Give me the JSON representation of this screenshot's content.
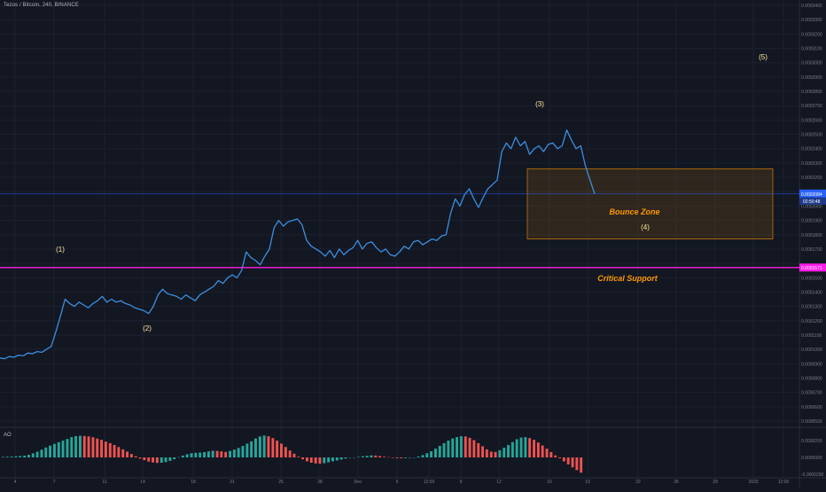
{
  "header": {
    "title": "Tezos / Bitcoin, 240, BINANCE"
  },
  "indicator": {
    "label": "AO"
  },
  "colors": {
    "background": "#131722",
    "price_line": "#3a8fe0",
    "support_line": "#ff1ce8",
    "zone_fill": "rgba(255,152,0,0.12)",
    "zone_border": "#ff9800",
    "annotation_text": "#ff9800",
    "wave_label": "#ffeb9c",
    "axis_text": "#7a7f8c",
    "ao_green": "#26a69a",
    "ao_red": "#ef5350"
  },
  "chart_data": [
    {
      "type": "line",
      "pair": "XTZ/BTC",
      "timeframe": "240",
      "exchange": "BINANCE",
      "ylim": [
        0.0004,
        0.00034
      ],
      "y_ticks": [
        0.00034,
        0.000335,
        0.00033,
        0.000325,
        0.00032,
        0.000315,
        0.00031,
        0.000305,
        0.0003,
        0.000295,
        0.00029,
        0.000285,
        0.00028,
        0.000275,
        0.00027,
        0.000265,
        0.00026,
        0.000255,
        0.00025,
        0.000245,
        0.00024,
        0.000235,
        0.00023,
        0.000225,
        0.00022,
        0.000215,
        0.00021,
        0.000205,
        0.0002,
        0.000195,
        0.00019,
        0.000185,
        0.00018,
        0.000175,
        0.00017,
        0.000165,
        0.00016,
        0.000155,
        0.00015,
        0.000145,
        0.00014,
        0.000135,
        0.00013,
        0.000125,
        0.00012,
        0.000115,
        0.00011,
        0.000105,
        0.0001,
        9.5e-05,
        9e-05,
        8.5e-05,
        8e-05,
        7.5e-05,
        7e-05,
        6.5e-05,
        6e-05,
        5.5e-05,
        5e-05,
        4.5e-05
      ],
      "y_tick_labels": [
        "0.0003400",
        "0.0003300",
        "0.0003200",
        "0.0003100",
        "0.0003000",
        "0.0002900",
        "0.0002800",
        "0.0002700",
        "0.0002600",
        "0.0002500",
        "0.0002400",
        "0.0002300",
        "0.0002200",
        "0.0002100",
        "0.0002000",
        "0.0001900",
        "0.0001800",
        "0.0001700",
        "0.0001600",
        "0.0001500",
        "0.0001400",
        "0.0001300",
        "0.0001200",
        "0.0001100",
        "0.0001000",
        "0.0000900",
        "0.0000800",
        "0.0000700",
        "0.0000600",
        "0.0000500"
      ],
      "x_tick_labels": [
        "4",
        "7",
        "11",
        "14",
        "18",
        "21",
        "25",
        "28",
        "Dec",
        "5",
        "12:00",
        "9",
        "12",
        "16",
        "19",
        "22",
        "26",
        "29",
        "2020",
        "12:00"
      ],
      "current_price_label": "0.0002084",
      "countdown_label": "02:50:48",
      "support_price_label": "0.0001571",
      "support_level": 0.0001571,
      "bounce_zone": {
        "from_date": "Dec 12",
        "to_date": "Dec 29",
        "top": 0.000226,
        "bottom": 0.000177
      },
      "annotations": {
        "bounce_zone": "Bounce Zone",
        "critical_support": "Critical Support"
      },
      "wave_labels": [
        {
          "text": "(1)",
          "x": "Nov 7",
          "y": 0.00017
        },
        {
          "text": "(2)",
          "x": "Nov 14",
          "y": 0.000114
        },
        {
          "text": "(3)",
          "x": "Dec 12",
          "y": 0.000272
        },
        {
          "text": "(4)",
          "x": "Dec 22",
          "y": 0.000183
        },
        {
          "text": "(5)",
          "x": "Dec 30",
          "y": 0.000314
        }
      ],
      "series_values": [
        9.4e-05,
        9.35e-05,
        9.5e-05,
        9.45e-05,
        9.6e-05,
        9.55e-05,
        9.75e-05,
        9.7e-05,
        9.85e-05,
        9.8e-05,
        0.0001,
        0.000102,
        0.000112,
        0.000123,
        0.000135,
        0.000132,
        0.00013,
        0.000133,
        0.000131,
        0.000129,
        0.000132,
        0.000134,
        0.000137,
        0.000133,
        0.000135,
        0.000133,
        0.000134,
        0.000132,
        0.000131,
        0.000129,
        0.000128,
        0.000127,
        0.000125,
        0.00013,
        0.000138,
        0.000142,
        0.000139,
        0.000138,
        0.000137,
        0.000135,
        0.000138,
        0.000136,
        0.000134,
        0.000138,
        0.00014,
        0.000142,
        0.000144,
        0.000148,
        0.000146,
        0.00015,
        0.000152,
        0.00015,
        0.000155,
        0.000168,
        0.000164,
        0.000162,
        0.000159,
        0.000165,
        0.00017,
        0.000185,
        0.00019,
        0.000186,
        0.000189,
        0.00019,
        0.000191,
        0.000187,
        0.000176,
        0.000172,
        0.00017,
        0.000168,
        0.000165,
        0.000169,
        0.000164,
        0.00017,
        0.000166,
        0.000169,
        0.000171,
        0.000176,
        0.00017,
        0.000174,
        0.000175,
        0.000171,
        0.000168,
        0.00017,
        0.000166,
        0.000165,
        0.000168,
        0.000172,
        0.00017,
        0.000175,
        0.000176,
        0.000173,
        0.000175,
        0.000177,
        0.000176,
        0.000179,
        0.00018,
        0.000195,
        0.000205,
        0.0002,
        0.000208,
        0.000212,
        0.000205,
        0.000199,
        0.000206,
        0.000212,
        0.000215,
        0.000218,
        0.000238,
        0.000244,
        0.00024,
        0.000248,
        0.000242,
        0.000245,
        0.000236,
        0.00024,
        0.000242,
        0.000238,
        0.000243,
        0.000244,
        0.00024,
        0.000242,
        0.000253,
        0.000246,
        0.00024,
        0.000242,
        0.000228,
        0.000218,
        0.0002084
      ]
    },
    {
      "type": "bar",
      "name": "AO",
      "ylim": [
        -2e-05,
        2e-05
      ],
      "y_tick_labels": [
        "0.0000200",
        "0.0000000",
        "-0.0000200"
      ],
      "values": [
        0.5,
        0.6,
        0.8,
        1.0,
        1.2,
        1.5,
        2.2,
        3.5,
        5.0,
        6.8,
        8.6,
        10.2,
        11.8,
        13.2,
        14.6,
        16.0,
        17.6,
        18.5,
        18.8,
        18.6,
        18.2,
        17.5,
        16.4,
        15.2,
        13.8,
        12.4,
        10.8,
        9.0,
        7.0,
        5.0,
        3.0,
        1.0,
        -1.0,
        -2.4,
        -3.6,
        -4.4,
        -4.8,
        -4.6,
        -4.0,
        -3.0,
        -1.6,
        0.2,
        1.6,
        2.8,
        3.6,
        4.0,
        4.2,
        4.6,
        5.2,
        5.8,
        5.6,
        5.2,
        4.8,
        5.6,
        6.8,
        8.2,
        10.0,
        12.0,
        14.0,
        16.4,
        18.2,
        19.0,
        18.4,
        16.8,
        14.6,
        12.0,
        9.0,
        6.0,
        3.2,
        0.6,
        -1.6,
        -3.4,
        -4.6,
        -5.2,
        -5.4,
        -5.0,
        -4.2,
        -3.4,
        -2.6,
        -1.8,
        -1.0,
        -0.4,
        0.0,
        0.4,
        1.0,
        1.4,
        1.8,
        1.6,
        1.2,
        0.6,
        0.2,
        -0.4,
        -0.6,
        -0.8,
        -0.6,
        -0.4,
        0.0,
        0.8,
        2.0,
        3.6,
        5.4,
        7.6,
        10.0,
        12.4,
        14.6,
        16.4,
        17.6,
        18.4,
        18.2,
        17.0,
        15.0,
        12.4,
        9.6,
        7.0,
        5.0,
        4.8,
        6.2,
        8.4,
        10.8,
        13.4,
        15.8,
        17.2,
        17.6,
        16.8,
        15.2,
        13.0,
        10.4,
        7.6,
        4.6,
        1.8,
        -0.8,
        -3.4,
        -6.0,
        -8.6,
        -11.0,
        -13.2
      ]
    }
  ]
}
